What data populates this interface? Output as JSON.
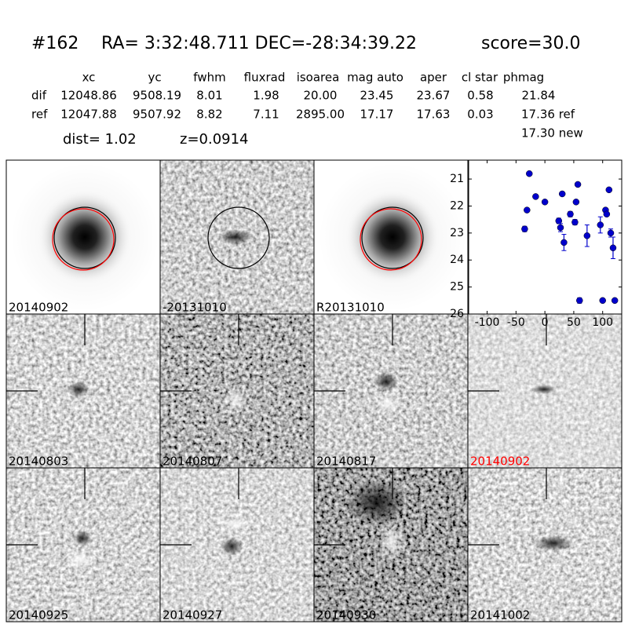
{
  "header": {
    "id": "#162",
    "coords": "RA= 3:32:48.711 DEC=-28:34:39.22",
    "score": "score=30.0"
  },
  "table": {
    "columns": [
      "xc",
      "yc",
      "fwhm",
      "fluxrad",
      "isoarea",
      "mag auto",
      "aper",
      "cl star",
      "phmag"
    ],
    "rows": [
      {
        "label": "dif",
        "values": [
          "12048.86",
          "9508.19",
          "8.01",
          "1.98",
          "20.00",
          "23.45",
          "23.67",
          "0.58",
          "21.84"
        ]
      },
      {
        "label": "ref",
        "values": [
          "12047.88",
          "9507.92",
          "8.82",
          "7.11",
          "2895.00",
          "17.17",
          "17.63",
          "0.03",
          "17.36 ref"
        ]
      }
    ],
    "extra": "17.30 new",
    "dist": "dist=  1.02",
    "z": "z=0.0914"
  },
  "stamps": [
    {
      "label": "20140902"
    },
    {
      "label": "-20131010"
    },
    {
      "label": "R20131010"
    },
    {
      "label": "20140803"
    },
    {
      "label": "20140807"
    },
    {
      "label": "20140817"
    },
    {
      "label": "20140902",
      "color": "#ff0000"
    },
    {
      "label": "20140925"
    },
    {
      "label": "20140927"
    },
    {
      "label": "20140930"
    },
    {
      "label": "20141002"
    }
  ],
  "chart_data": {
    "type": "scatter",
    "color": "#0000cc",
    "x": [
      -35,
      -31,
      -27,
      -16,
      0,
      24,
      27,
      30,
      33,
      44,
      52,
      54,
      57,
      60,
      73,
      96,
      100,
      105,
      107,
      111,
      114,
      118,
      121
    ],
    "values": [
      22.85,
      22.15,
      20.8,
      21.65,
      21.85,
      22.55,
      22.8,
      21.55,
      23.35,
      22.3,
      22.6,
      21.85,
      21.2,
      25.5,
      23.1,
      22.7,
      25.5,
      22.15,
      22.3,
      21.4,
      23.0,
      23.55,
      25.5
    ],
    "errors": [
      0.1,
      0.05,
      0.05,
      0.05,
      0.05,
      0.1,
      0.15,
      0.05,
      0.3,
      0.1,
      0.1,
      0.05,
      0.05,
      0.1,
      0.4,
      0.3,
      0.05,
      0.05,
      0.05,
      0.05,
      0.15,
      0.4,
      0.05
    ],
    "xlim": [
      -132,
      133
    ],
    "ylim": [
      26,
      20.3
    ],
    "xticks": [
      -100,
      -50,
      0,
      50,
      100
    ],
    "yticks": [
      21,
      22,
      23,
      24,
      25,
      26
    ]
  }
}
